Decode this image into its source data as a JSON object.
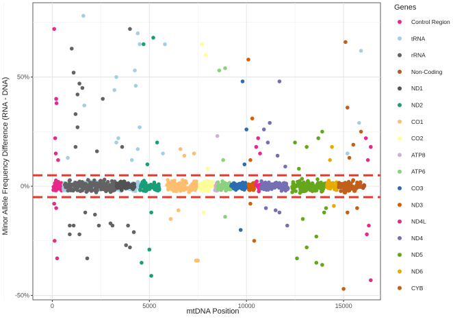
{
  "chart_data": {
    "type": "scatter",
    "xlabel": "mtDNA Position",
    "ylabel": "Minor Allele Frequency Difference (RNA - DNA)",
    "xlim": [
      -1000,
      16900
    ],
    "ylim": [
      -0.52,
      0.84
    ],
    "x_ticks": [
      0,
      5000,
      10000,
      15000
    ],
    "x_tick_labels": [
      "0",
      "5000",
      "10000",
      "15000"
    ],
    "y_ticks": [
      -0.5,
      0,
      0.5
    ],
    "y_tick_labels": [
      "-50%",
      "0%",
      "50%"
    ],
    "threshold_lines": [
      0.05,
      -0.05
    ],
    "threshold_color": "#e8362a",
    "grid": true,
    "legend": {
      "title": "Genes",
      "placement": "right"
    },
    "series": [
      {
        "name": "Control Region",
        "color": "#e7298a",
        "range": [
          0,
          576
        ],
        "spread": 0.04,
        "outliers": [
          [
            100,
            0.72
          ],
          [
            200,
            0.4
          ],
          [
            220,
            0.38
          ],
          [
            150,
            0.22
          ],
          [
            180,
            0.15
          ],
          [
            300,
            0.12
          ],
          [
            100,
            -0.08
          ],
          [
            200,
            -0.1
          ],
          [
            120,
            -0.25
          ],
          [
            250,
            -0.33
          ],
          [
            16400,
            -0.43
          ],
          [
            16250,
            0.12
          ],
          [
            16150,
            0.22
          ],
          [
            16300,
            -0.18
          ],
          [
            16200,
            -0.22
          ],
          [
            16400,
            0.18
          ]
        ]
      },
      {
        "name": "tRNA",
        "color": "#a6cee3",
        "range": [
          577,
          4500
        ],
        "spread": 0.03,
        "outliers": [
          [
            1600,
            0.78
          ],
          [
            4400,
            0.7
          ],
          [
            4500,
            0.65
          ],
          [
            5800,
            0.65
          ],
          [
            4250,
            0.53
          ],
          [
            3300,
            0.5
          ],
          [
            3200,
            0.44
          ],
          [
            4300,
            0.46
          ],
          [
            1650,
            0.37
          ],
          [
            4500,
            0.27
          ],
          [
            4400,
            0.17
          ],
          [
            3400,
            0.22
          ],
          [
            3300,
            0.2
          ],
          [
            5700,
            0.15
          ],
          [
            15900,
            0.62
          ],
          [
            15800,
            0.29
          ],
          [
            15200,
            0.15
          ],
          [
            4100,
            0.12
          ],
          [
            800,
            0.13
          ]
        ]
      },
      {
        "name": "rRNA",
        "color": "#636363",
        "range": [
          648,
          3229
        ],
        "spread": 0.045,
        "outliers": [
          [
            4000,
            0.72
          ],
          [
            1000,
            0.63
          ],
          [
            1100,
            0.52
          ],
          [
            1400,
            0.47
          ],
          [
            1300,
            0.42
          ],
          [
            1550,
            0.45
          ],
          [
            2600,
            0.4
          ],
          [
            1200,
            0.33
          ],
          [
            1300,
            0.27
          ],
          [
            1200,
            0.18
          ],
          [
            2300,
            0.16
          ],
          [
            3600,
            0.18
          ],
          [
            2200,
            -0.13
          ],
          [
            1700,
            -0.12
          ],
          [
            1100,
            -0.18
          ],
          [
            900,
            -0.18
          ],
          [
            1400,
            -0.22
          ],
          [
            2400,
            -0.18
          ],
          [
            3100,
            -0.18
          ],
          [
            3000,
            -0.17
          ],
          [
            3900,
            -0.18
          ],
          [
            1800,
            -0.33
          ],
          [
            3800,
            -0.27
          ],
          [
            4000,
            -0.28
          ],
          [
            4200,
            -0.21
          ],
          [
            900,
            -0.22
          ]
        ]
      },
      {
        "name": "Non-Coding",
        "color": "#b15928",
        "range": [
          16000,
          16100
        ],
        "spread": 0.02,
        "outliers": []
      },
      {
        "name": "ND1",
        "color": "#525252",
        "range": [
          3307,
          4262
        ],
        "spread": 0.03,
        "outliers": []
      },
      {
        "name": "ND2",
        "color": "#1b9e77",
        "range": [
          4470,
          5511
        ],
        "spread": 0.04,
        "outliers": [
          [
            4700,
            0.65
          ],
          [
            5200,
            0.68
          ],
          [
            5400,
            0.2
          ],
          [
            4900,
            0.1
          ],
          [
            5100,
            -0.12
          ],
          [
            5000,
            -0.29
          ],
          [
            4600,
            -0.35
          ],
          [
            5100,
            -0.41
          ]
        ]
      },
      {
        "name": "CO1",
        "color": "#fdbf6f",
        "range": [
          5904,
          7445
        ],
        "spread": 0.04,
        "outliers": [
          [
            6600,
            0.17
          ],
          [
            7300,
            0.15
          ],
          [
            6800,
            0.14
          ],
          [
            7400,
            -0.34
          ],
          [
            7500,
            -0.34
          ],
          [
            6100,
            -0.15
          ],
          [
            6500,
            -0.11
          ]
        ]
      },
      {
        "name": "CO2",
        "color": "#ffff99",
        "range": [
          7586,
          8269
        ],
        "spread": 0.04,
        "outliers": [
          [
            7700,
            0.65
          ],
          [
            7900,
            0.6
          ],
          [
            8000,
            0.08
          ],
          [
            7800,
            -0.12
          ]
        ]
      },
      {
        "name": "ATP8",
        "color": "#cab2d6",
        "range": [
          8366,
          8572
        ],
        "spread": 0.03,
        "outliers": [
          [
            8500,
            0.23
          ]
        ]
      },
      {
        "name": "ATP6",
        "color": "#8cd17d",
        "range": [
          8527,
          9207
        ],
        "spread": 0.035,
        "outliers": [
          [
            8600,
            0.53
          ],
          [
            8900,
            0.54
          ],
          [
            8800,
            0.12
          ],
          [
            8900,
            -0.14
          ]
        ]
      },
      {
        "name": "CO3",
        "color": "#2c6db2",
        "range": [
          9207,
          9990
        ],
        "spread": 0.035,
        "outliers": [
          [
            9800,
            0.48
          ],
          [
            10000,
            0.26
          ],
          [
            9700,
            -0.2
          ],
          [
            9900,
            0.1
          ]
        ]
      },
      {
        "name": "ND3",
        "color": "#d95f02",
        "range": [
          10059,
          10404
        ],
        "spread": 0.035,
        "outliers": [
          [
            10100,
            0.58
          ],
          [
            10300,
            0.31
          ],
          [
            10200,
            0.12
          ],
          [
            10400,
            -0.25
          ],
          [
            10200,
            -0.08
          ]
        ]
      },
      {
        "name": "ND4L",
        "color": "#e7298a",
        "range": [
          10470,
          10766
        ],
        "spread": 0.04,
        "outliers": [
          [
            10600,
            0.22
          ],
          [
            10700,
            0.15
          ],
          [
            10500,
            0.18
          ]
        ]
      },
      {
        "name": "ND4",
        "color": "#7570b3",
        "range": [
          10760,
          12137
        ],
        "spread": 0.035,
        "outliers": [
          [
            11700,
            0.48
          ],
          [
            11200,
            0.29
          ],
          [
            10900,
            0.26
          ],
          [
            11600,
            0.14
          ],
          [
            11100,
            0.2
          ],
          [
            12000,
            0.09
          ],
          [
            11700,
            -0.12
          ],
          [
            11500,
            -0.11
          ],
          [
            12100,
            -0.18
          ],
          [
            11000,
            -0.1
          ]
        ]
      },
      {
        "name": "ND5",
        "color": "#66a61e",
        "range": [
          12337,
          14148
        ],
        "spread": 0.04,
        "outliers": [
          [
            13900,
            0.25
          ],
          [
            13700,
            0.22
          ],
          [
            12500,
            0.2
          ],
          [
            13100,
            0.18
          ],
          [
            12700,
            0.08
          ],
          [
            14000,
            -0.12
          ],
          [
            13600,
            -0.23
          ],
          [
            12600,
            -0.33
          ],
          [
            13600,
            -0.35
          ],
          [
            13900,
            -0.36
          ],
          [
            13100,
            -0.28
          ],
          [
            12900,
            -0.15
          ],
          [
            14100,
            -0.1
          ]
        ]
      },
      {
        "name": "ND6",
        "color": "#e6ab02",
        "range": [
          14149,
          14673
        ],
        "spread": 0.035,
        "outliers": [
          [
            14400,
            0.18
          ],
          [
            14300,
            0.12
          ],
          [
            14500,
            -0.09
          ]
        ]
      },
      {
        "name": "CYB",
        "color": "#c0601b",
        "range": [
          14747,
          15887
        ],
        "spread": 0.04,
        "outliers": [
          [
            15100,
            0.66
          ],
          [
            15200,
            0.36
          ],
          [
            15900,
            0.25
          ],
          [
            15500,
            0.19
          ],
          [
            15300,
            0.13
          ],
          [
            15000,
            -0.47
          ],
          [
            15200,
            -0.12
          ],
          [
            15700,
            -0.1
          ]
        ]
      }
    ]
  }
}
